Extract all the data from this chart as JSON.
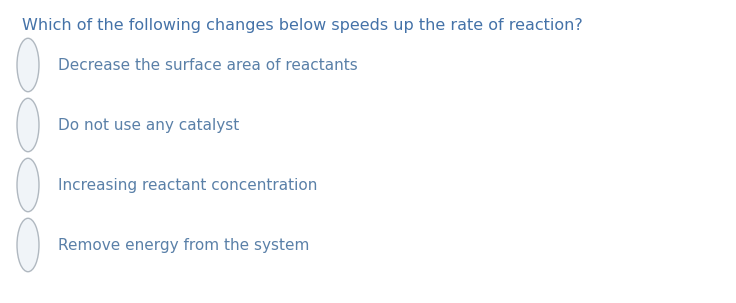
{
  "background_color": "#ffffff",
  "question": "Which of the following changes below speeds up the rate of reaction?",
  "question_color": "#4472a8",
  "question_fontsize": 11.5,
  "options": [
    "Decrease the surface area of reactants",
    "Do not use any catalyst",
    "Increasing reactant concentration",
    "Remove energy from the system"
  ],
  "option_color": "#5a80a8",
  "option_fontsize": 11.0,
  "circle_edge_color": "#b0b8c0",
  "circle_fill_color": "#f0f4f8",
  "fig_width": 7.36,
  "fig_height": 3.03,
  "dpi": 100
}
